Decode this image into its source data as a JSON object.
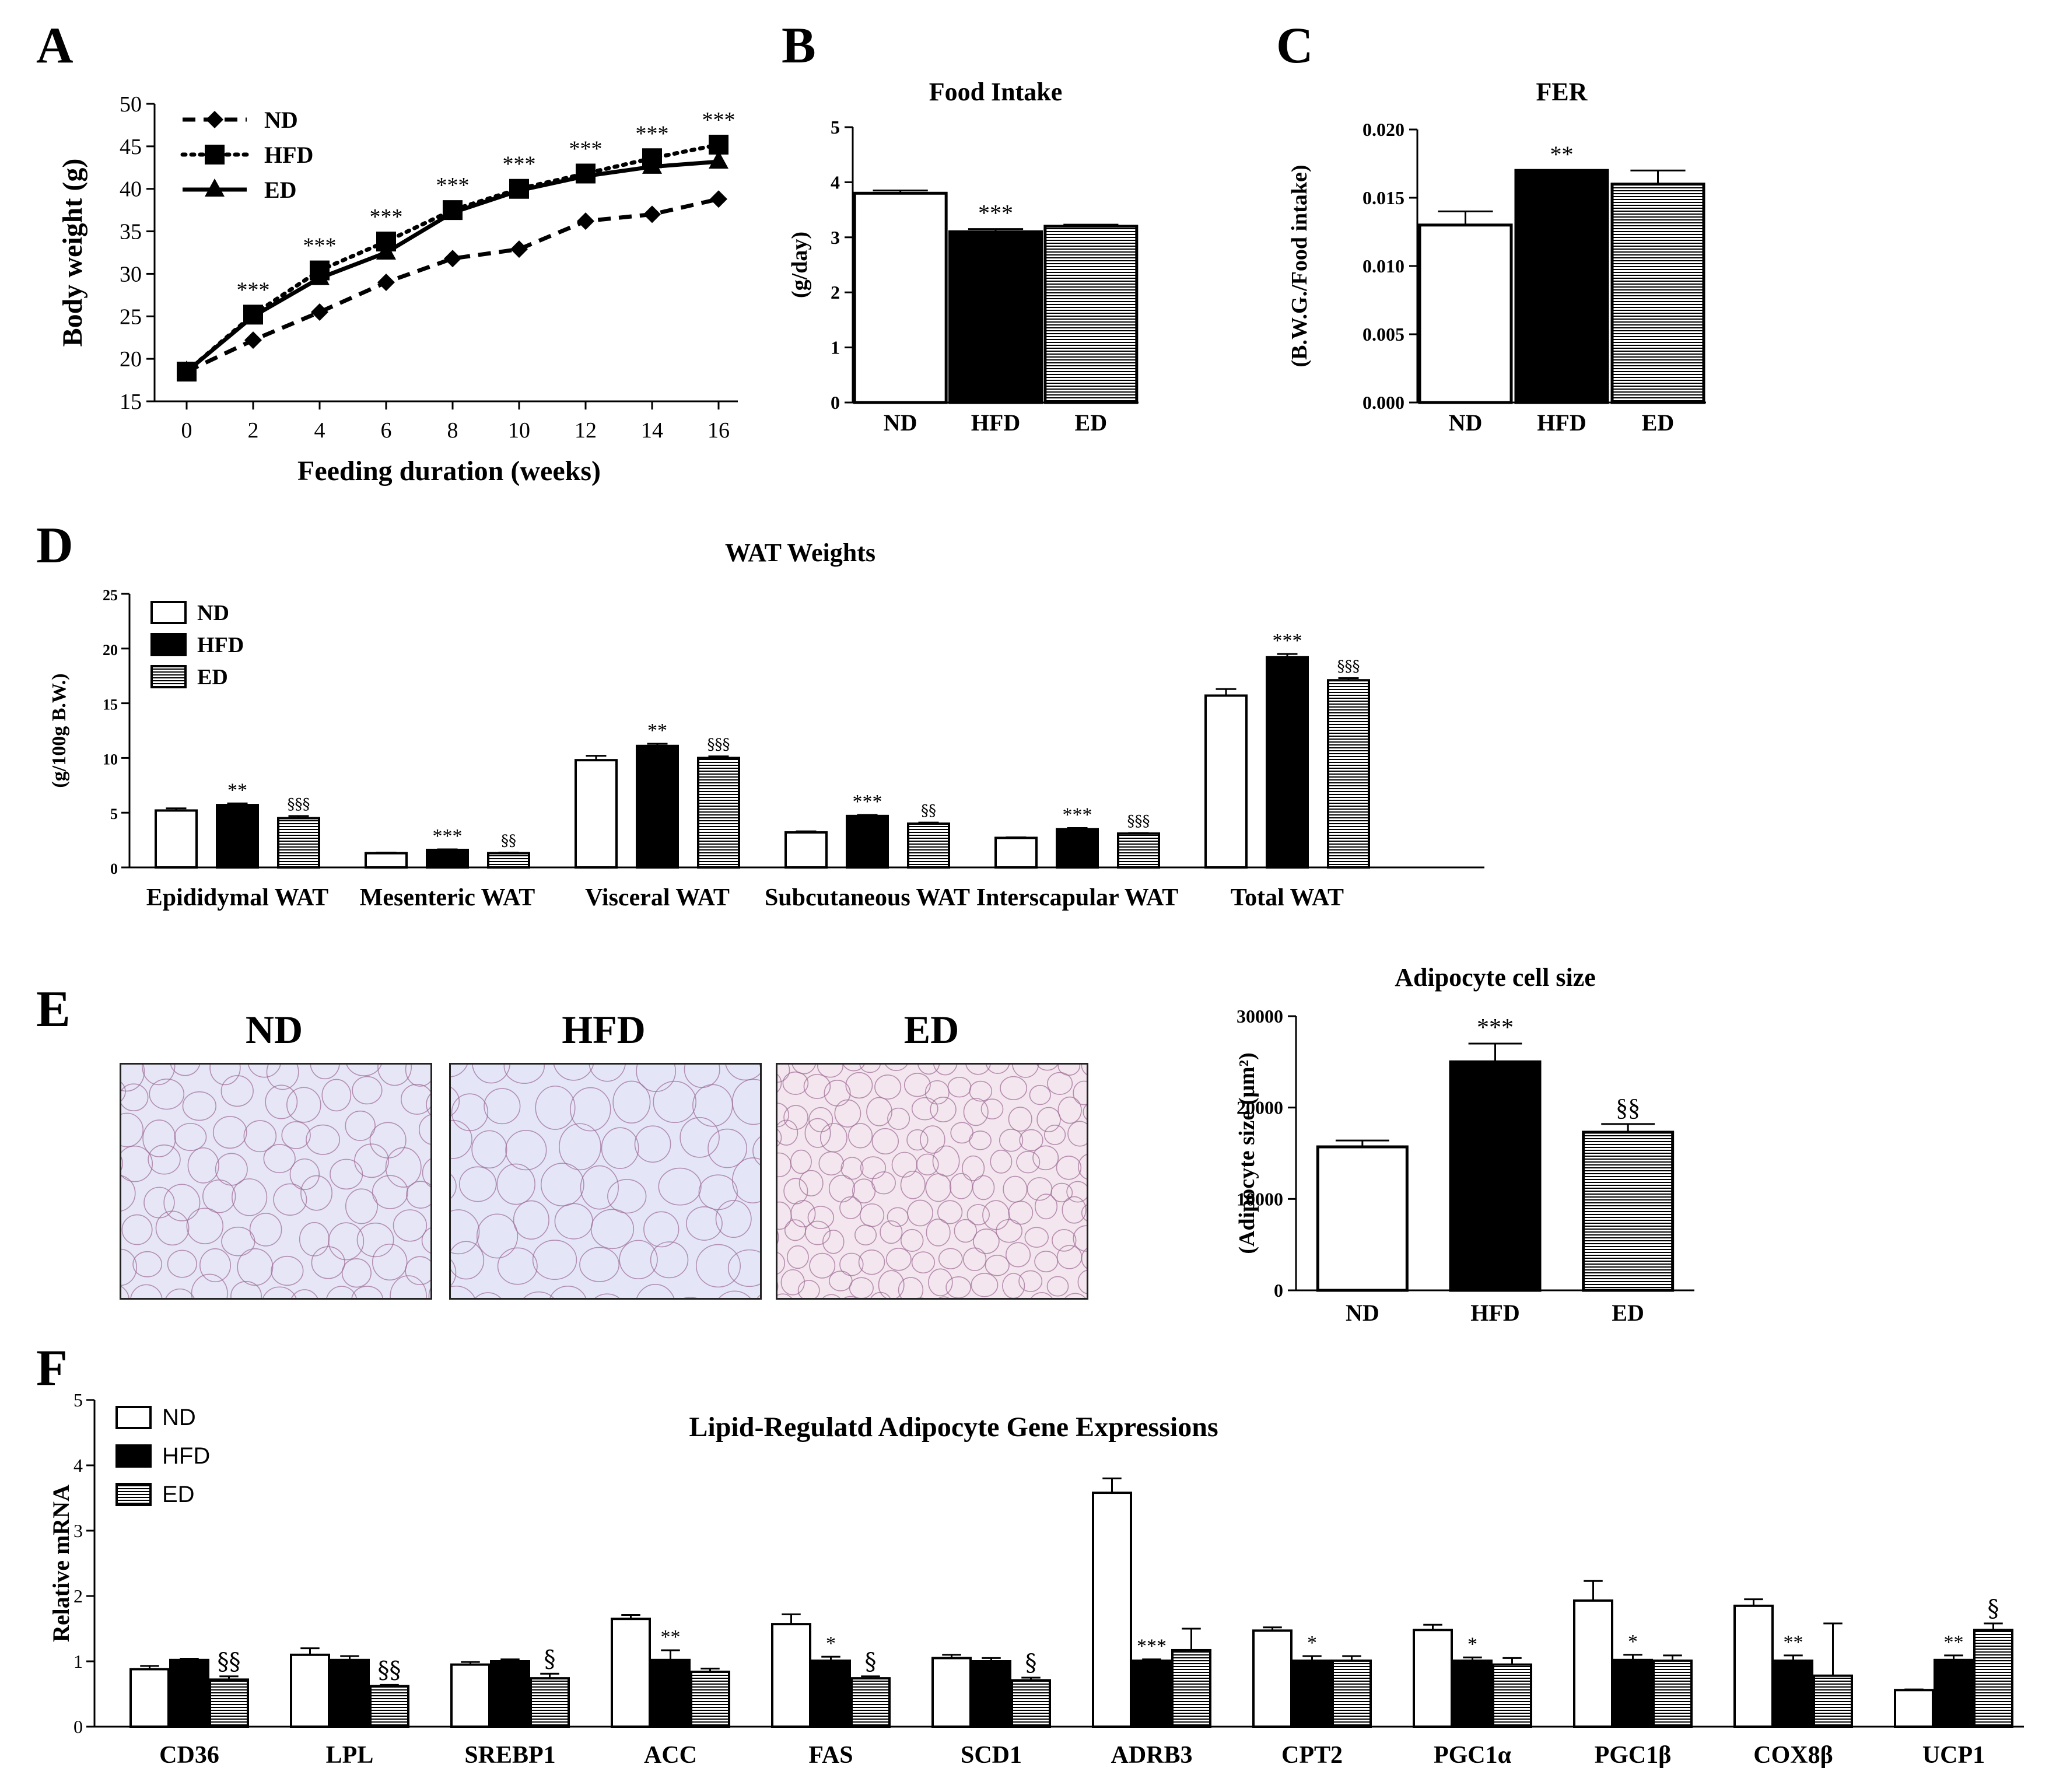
{
  "panels": {
    "A": "A",
    "B": "B",
    "C": "C",
    "D": "D",
    "E": "E",
    "F": "F"
  },
  "chart_data": [
    {
      "id": "A",
      "type": "line",
      "title": "",
      "xlabel": "Feeding duration (weeks)",
      "ylabel": "Body weight (g)",
      "x": [
        0,
        2,
        4,
        6,
        8,
        10,
        12,
        14,
        16
      ],
      "ylim": [
        15,
        50
      ],
      "yticks": [
        15,
        20,
        25,
        30,
        35,
        40,
        45,
        50
      ],
      "series": [
        {
          "name": "ND",
          "marker": "diamond",
          "line": "dashed",
          "values": [
            18.5,
            22.2,
            25.5,
            29.0,
            31.8,
            32.9,
            36.2,
            37.0,
            38.8
          ]
        },
        {
          "name": "HFD",
          "marker": "square",
          "line": "dotted",
          "values": [
            18.5,
            25.2,
            30.4,
            33.8,
            37.5,
            40.0,
            41.8,
            43.6,
            45.2
          ]
        },
        {
          "name": "ED",
          "marker": "triangle",
          "line": "solid",
          "values": [
            18.5,
            25.0,
            29.5,
            32.5,
            37.2,
            39.8,
            41.5,
            42.6,
            43.2
          ]
        }
      ],
      "annotations": [
        "",
        "***",
        "***",
        "***",
        "***",
        "***",
        "***",
        "***",
        "***"
      ],
      "legend": "top-left"
    },
    {
      "id": "B",
      "type": "bar",
      "title": "Food Intake",
      "xlabel": "",
      "ylabel": "(g/day)",
      "categories": [
        "ND",
        "HFD",
        "ED"
      ],
      "values": [
        3.8,
        3.1,
        3.2
      ],
      "errors": [
        0.05,
        0.05,
        0.03
      ],
      "fills": [
        "white",
        "black",
        "hatch"
      ],
      "annotations": [
        "",
        "***",
        ""
      ],
      "ylim": [
        0,
        5
      ],
      "yticks": [
        0,
        1,
        2,
        3,
        4,
        5
      ]
    },
    {
      "id": "C",
      "type": "bar",
      "title": "FER",
      "xlabel": "",
      "ylabel": "(B.W.G./Food intake)",
      "categories": [
        "ND",
        "HFD",
        "ED"
      ],
      "values": [
        0.013,
        0.017,
        0.016
      ],
      "errors": [
        0.001,
        0.0,
        0.001
      ],
      "fills": [
        "white",
        "black",
        "hatch"
      ],
      "annotations": [
        "",
        "**",
        ""
      ],
      "ylim": [
        0,
        0.02
      ],
      "yticks": [
        "0.000",
        "0.005",
        "0.010",
        "0.015",
        "0.020"
      ]
    },
    {
      "id": "D",
      "type": "bar",
      "title": "WAT Weights",
      "xlabel": "",
      "ylabel": "(g/100g B.W.)",
      "categories": [
        "Epididymal WAT",
        "Mesenteric WAT",
        "Visceral WAT",
        "Subcutaneous WAT",
        "Interscapular WAT",
        "Total WAT"
      ],
      "series": [
        {
          "name": "ND",
          "values": [
            5.2,
            1.3,
            9.8,
            3.2,
            2.7,
            15.7
          ],
          "errors": [
            0.2,
            0.05,
            0.4,
            0.1,
            0.05,
            0.6
          ]
        },
        {
          "name": "HFD",
          "values": [
            5.7,
            1.6,
            11.1,
            4.7,
            3.5,
            19.2
          ],
          "errors": [
            0.15,
            0.05,
            0.2,
            0.1,
            0.1,
            0.3
          ]
        },
        {
          "name": "ED",
          "values": [
            4.5,
            1.3,
            10.0,
            4.0,
            3.1,
            17.1
          ],
          "errors": [
            0.2,
            0.05,
            0.15,
            0.1,
            0.05,
            0.2
          ]
        }
      ],
      "annotations": {
        "HFD": [
          "**",
          "***",
          "**",
          "***",
          "***",
          "***"
        ],
        "ED": [
          "§§§",
          "§§",
          "§§§",
          "§§",
          "§§§",
          "§§§"
        ]
      },
      "ylim": [
        0,
        25
      ],
      "yticks": [
        0,
        5,
        10,
        15,
        20,
        25
      ],
      "legend": "top-left"
    },
    {
      "id": "E",
      "type": "bar",
      "title": "Adipocyte cell size",
      "xlabel": "",
      "ylabel": "(Adipocyte size (μm²)",
      "categories": [
        "ND",
        "HFD",
        "ED"
      ],
      "values": [
        15700,
        25000,
        17300
      ],
      "errors": [
        700,
        2000,
        900
      ],
      "fills": [
        "white",
        "black",
        "hatch"
      ],
      "annotations": [
        "",
        "***",
        "§§"
      ],
      "ylim": [
        0,
        30000
      ],
      "yticks": [
        0,
        10000,
        20000,
        30000
      ]
    },
    {
      "id": "F",
      "type": "bar",
      "title": "Lipid-Regulatd Adipocyte Gene Expressions",
      "xlabel": "",
      "ylabel": "Relative mRNA",
      "categories": [
        "CD36",
        "LPL",
        "SREBP1",
        "ACC",
        "FAS",
        "SCD1",
        "ADRB3",
        "CPT2",
        "PGC1α",
        "PGC1β",
        "COX8β",
        "UCP1"
      ],
      "series": [
        {
          "name": "ND",
          "values": [
            0.88,
            1.1,
            0.95,
            1.65,
            1.57,
            1.05,
            3.58,
            1.47,
            1.48,
            1.93,
            1.85,
            0.56
          ],
          "errors": [
            0.05,
            0.1,
            0.04,
            0.06,
            0.15,
            0.05,
            0.22,
            0.05,
            0.08,
            0.3,
            0.1,
            0.01
          ]
        },
        {
          "name": "HFD",
          "values": [
            1.02,
            1.02,
            1.0,
            1.02,
            1.01,
            1.0,
            1.01,
            1.01,
            1.01,
            1.02,
            1.01,
            1.02
          ],
          "errors": [
            0.02,
            0.06,
            0.03,
            0.15,
            0.06,
            0.05,
            0.02,
            0.07,
            0.05,
            0.08,
            0.08,
            0.07
          ]
        },
        {
          "name": "ED",
          "values": [
            0.72,
            0.62,
            0.74,
            0.84,
            0.74,
            0.71,
            1.17,
            1.01,
            0.95,
            1.01,
            0.78,
            1.48
          ],
          "errors": [
            0.05,
            0.02,
            0.07,
            0.05,
            0.03,
            0.04,
            0.33,
            0.07,
            0.1,
            0.08,
            0.8,
            0.1
          ]
        }
      ],
      "annotations": {
        "HFD": [
          "",
          "",
          "",
          "**",
          "*",
          "",
          "***",
          "*",
          "*",
          "*",
          "**",
          "**"
        ],
        "ED": [
          "§§",
          "§§",
          "§",
          "",
          "§",
          "§",
          "",
          "",
          "",
          "",
          "",
          "§"
        ]
      },
      "ylim": [
        0,
        5
      ],
      "yticks": [
        0,
        1,
        2,
        3,
        4,
        5
      ],
      "legend": "top-left"
    }
  ],
  "histology": {
    "labels": [
      "ND",
      "HFD",
      "ED"
    ],
    "colors": {
      "ND": "#e6e6f6",
      "HFD": "#e4e6f8",
      "ED": "#f3e6ee",
      "membrane": "#9c6a95"
    }
  }
}
